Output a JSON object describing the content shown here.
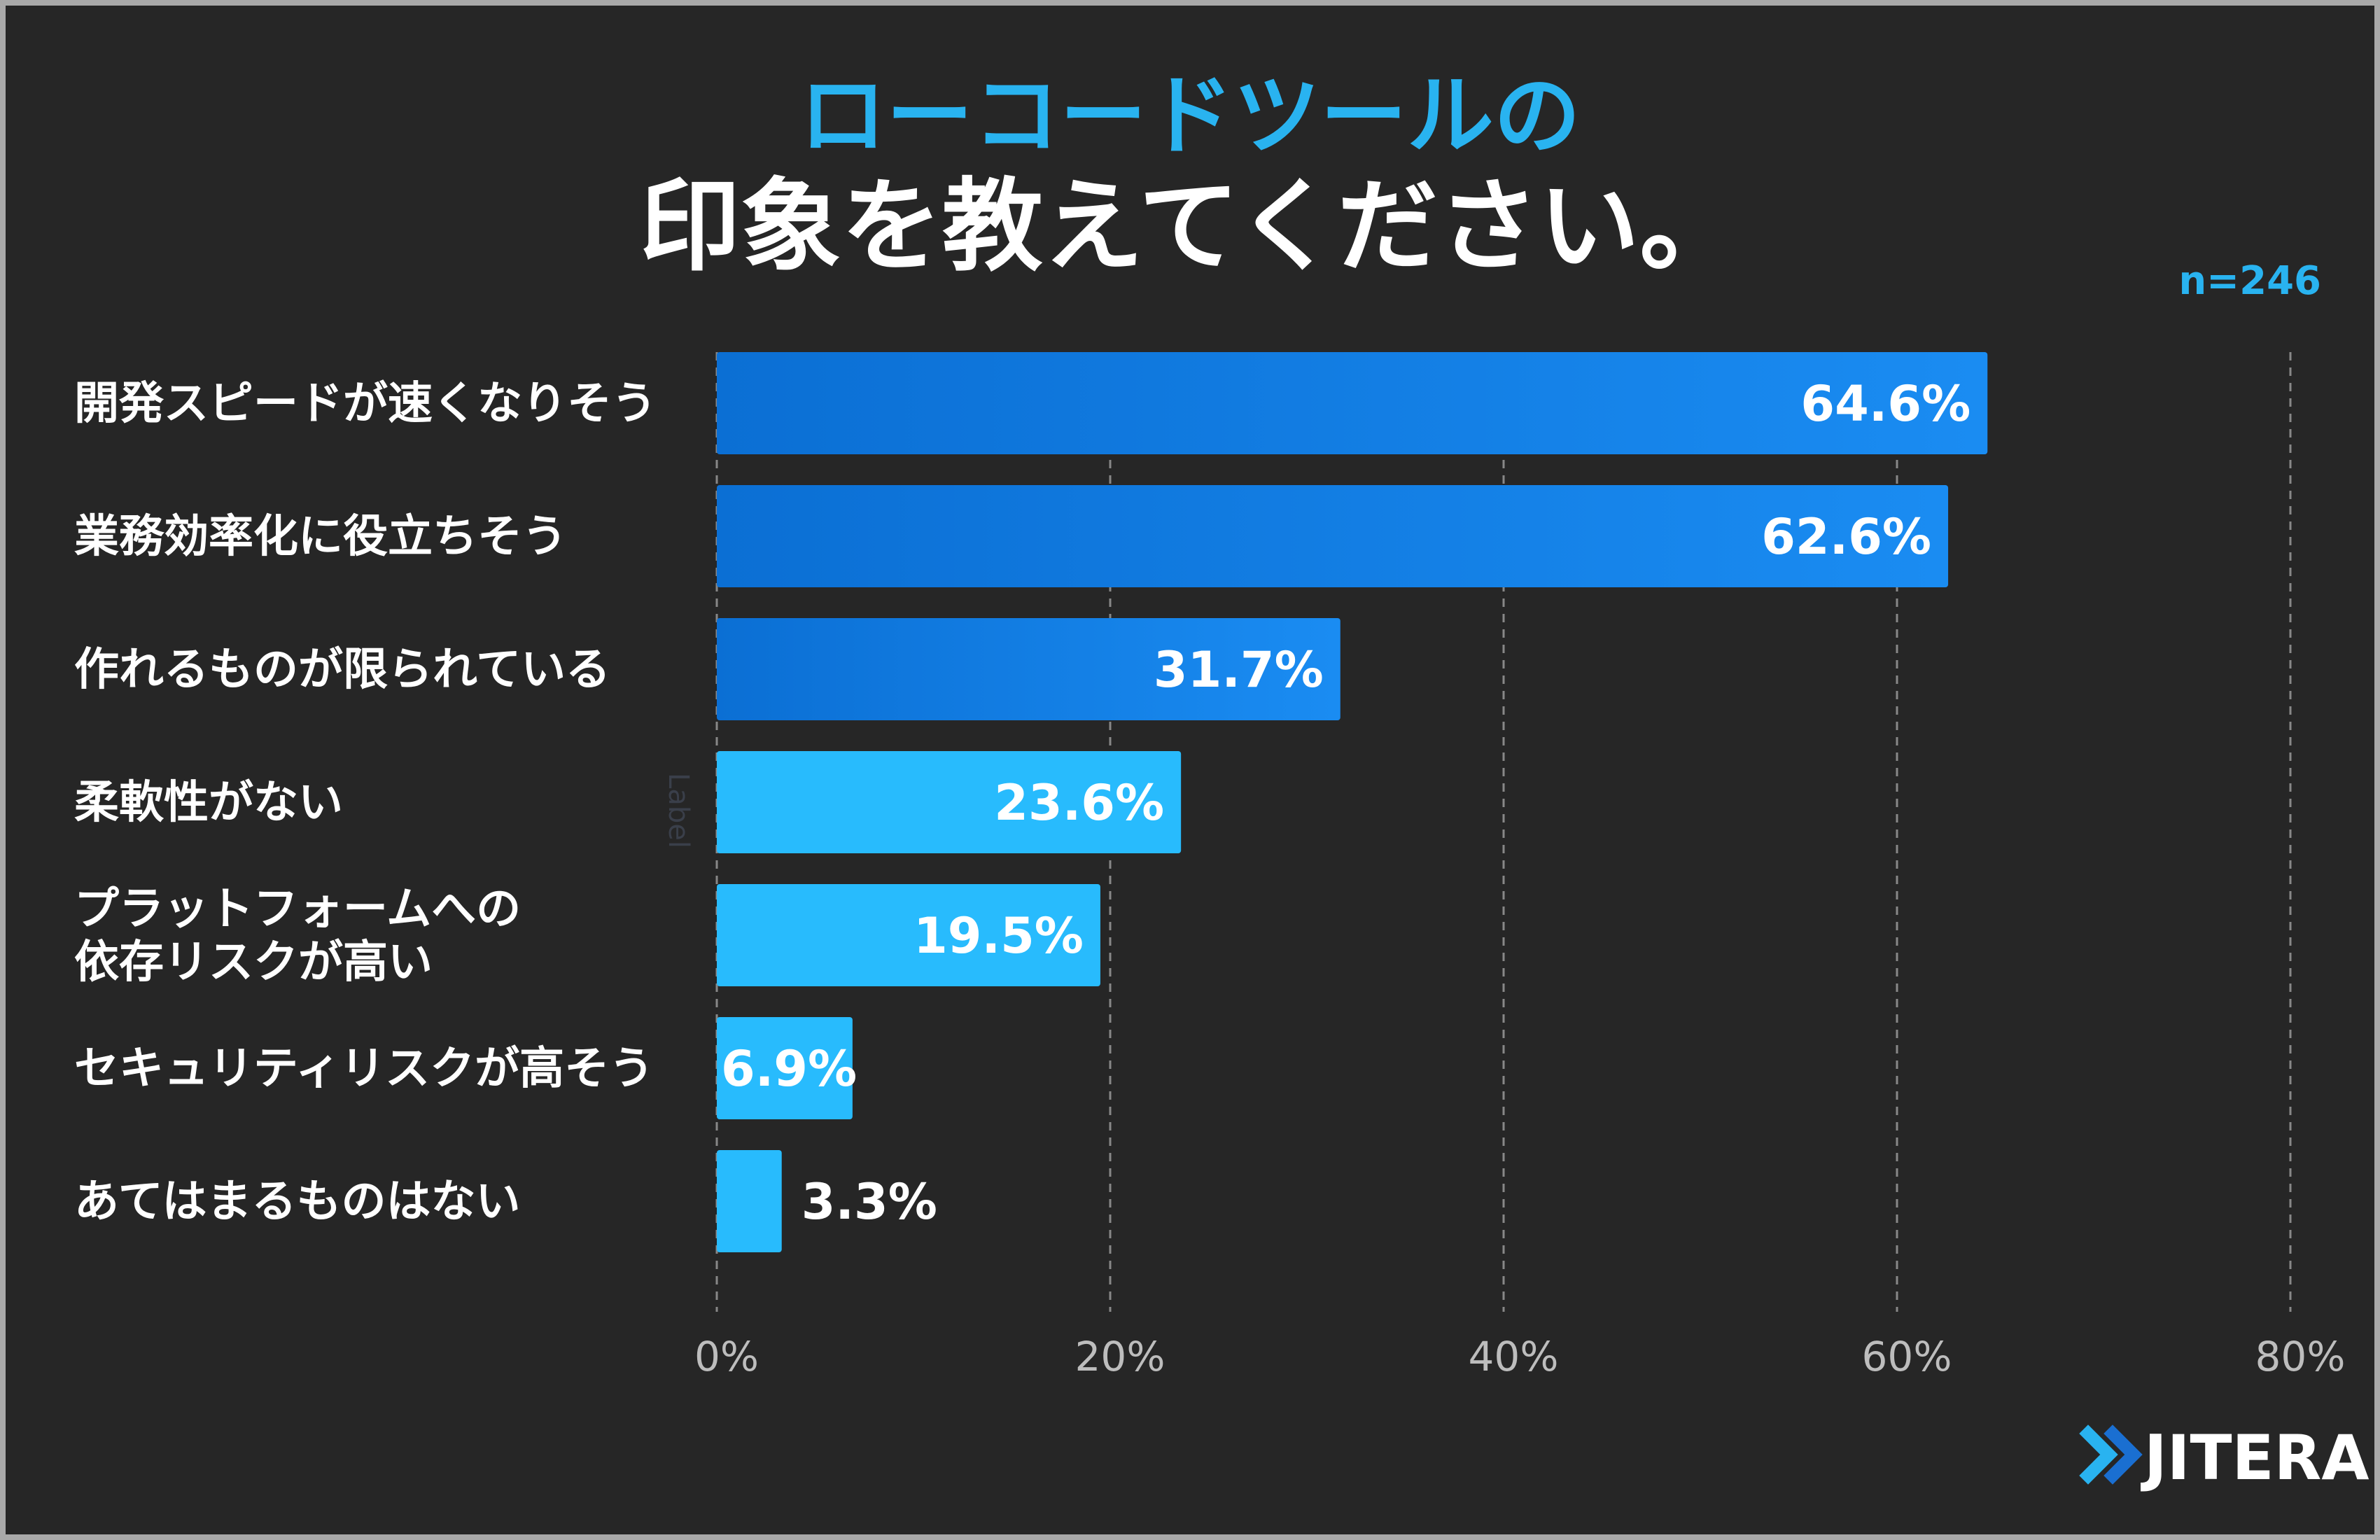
{
  "header": {
    "title_line1": "ローコードツールの",
    "title_line2": "印象を教えてください。",
    "sample_size": "n=246"
  },
  "chart_data": {
    "type": "bar",
    "orientation": "horizontal",
    "title": "ローコードツールの印象を教えてください。",
    "ylabel": "Label",
    "xlabel": "",
    "xlim": [
      0,
      80
    ],
    "xticks": [
      0,
      20,
      40,
      60,
      80
    ],
    "tick_labels": [
      "0%",
      "20%",
      "40%",
      "60%",
      "80%"
    ],
    "grid": true,
    "categories": [
      [
        "開発スピードが速くなりそう"
      ],
      [
        "業務効率化に役立ちそう"
      ],
      [
        "作れるものが限られている"
      ],
      [
        "柔軟性がない"
      ],
      [
        "プラットフォームへの",
        "依存リスクが高い"
      ],
      [
        "セキュリティリスクが高そう"
      ],
      [
        "あてはまるものはない"
      ]
    ],
    "values": [
      64.6,
      62.6,
      31.7,
      23.6,
      19.5,
      6.9,
      3.3
    ],
    "value_labels": [
      "64.6%",
      "62.6%",
      "31.7%",
      "23.6%",
      "19.5%",
      "6.9%",
      "3.3%"
    ],
    "colors": {
      "top_bar_start": "#0b6fd4",
      "top_bar_end": "#1a8cf2",
      "light_bar": "#28bbfd",
      "grid": "#888888"
    }
  },
  "brand": {
    "logo_text": "JITERA",
    "logo_icon": "double-chevron-icon"
  }
}
